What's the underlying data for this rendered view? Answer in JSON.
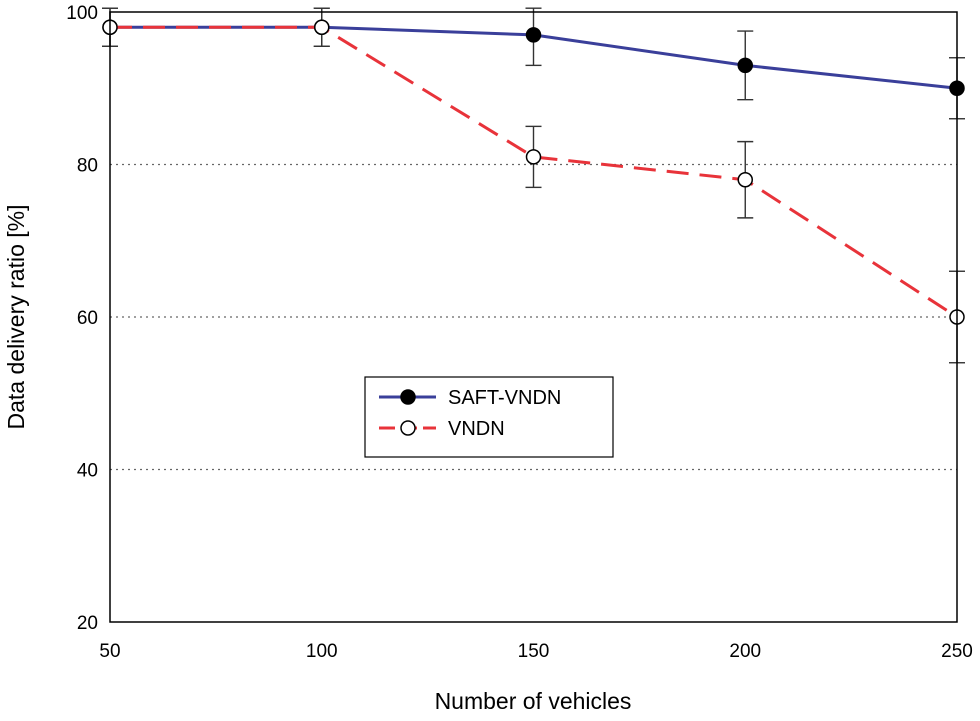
{
  "chart_data": {
    "type": "line",
    "title": "",
    "xlabel": "Number of vehicles",
    "ylabel": "Data delivery ratio [%]",
    "x": [
      50,
      100,
      150,
      200,
      250
    ],
    "xlim": [
      50,
      250
    ],
    "ylim": [
      20,
      100
    ],
    "xticks": [
      50,
      100,
      150,
      200,
      250
    ],
    "yticks": [
      20,
      40,
      60,
      80,
      100
    ],
    "grid": "horizontal dotted",
    "legend_position": "center-left",
    "series": [
      {
        "name": "SAFT-VNDN",
        "values": [
          98,
          98,
          97,
          93,
          90
        ],
        "error": [
          2.5,
          2.5,
          4,
          4.5,
          4
        ],
        "color": "#3a3f9a",
        "line": "solid",
        "marker": "filled-circle"
      },
      {
        "name": "VNDN",
        "values": [
          98,
          98,
          81,
          78,
          60
        ],
        "error": [
          2.5,
          2.5,
          4,
          5,
          6
        ],
        "color": "#e8333a",
        "line": "dashed",
        "marker": "open-circle"
      }
    ]
  }
}
